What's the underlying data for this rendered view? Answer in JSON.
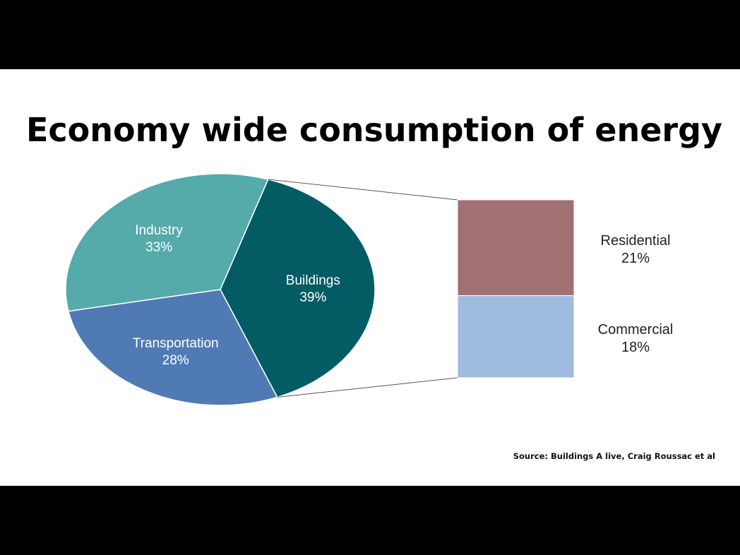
{
  "slide": {
    "title": "Economy wide consumption of energy",
    "source": "Source: Buildings A live, Craig Roussac et al"
  },
  "colors": {
    "industry": "#55aaaa",
    "transportation": "#507ab4",
    "buildings": "#035c63",
    "residential": "#a07072",
    "commercial": "#9fbbdf"
  },
  "chart_data": [
    {
      "type": "pie",
      "title": "Economy wide consumption of energy",
      "slices": [
        {
          "label": "Industry",
          "value": 33,
          "display": "33%",
          "color": "#55aaaa"
        },
        {
          "label": "Buildings",
          "value": 39,
          "display": "39%",
          "color": "#035c63"
        },
        {
          "label": "Transportation",
          "value": 28,
          "display": "28%",
          "color": "#507ab4"
        }
      ],
      "unit": "%"
    },
    {
      "type": "bar",
      "stacked": true,
      "breakdown_of": "Buildings",
      "series": [
        {
          "name": "Residential",
          "value": 21,
          "display": "21%",
          "color": "#a07072"
        },
        {
          "name": "Commercial",
          "value": 18,
          "display": "18%",
          "color": "#9fbbdf"
        }
      ],
      "unit": "%"
    }
  ]
}
